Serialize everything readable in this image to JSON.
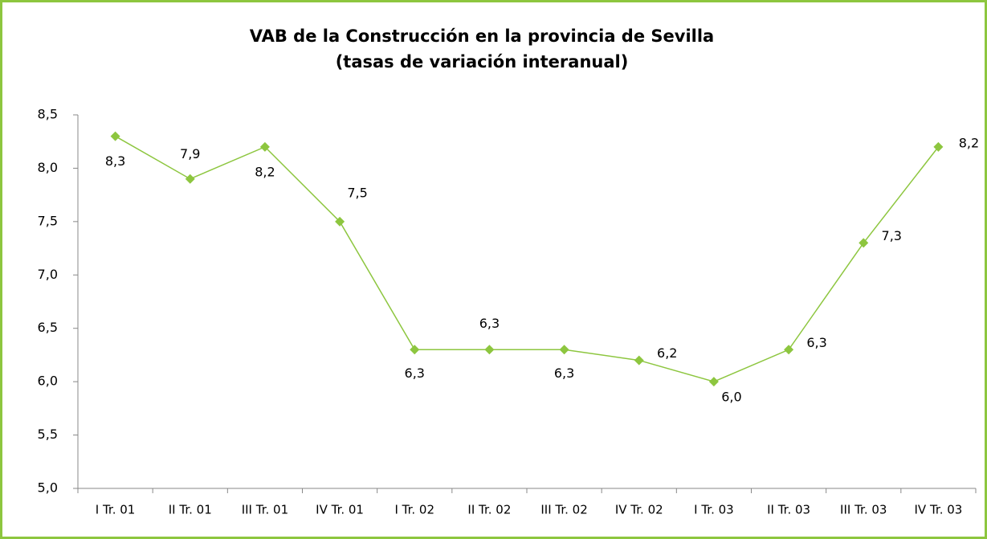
{
  "chart_data": {
    "type": "line",
    "title": [
      "VAB de la Construcción en la provincia de Sevilla",
      "(tasas de variación interanual)"
    ],
    "categories": [
      "I Tr. 01",
      "II Tr. 01",
      "III Tr. 01",
      "IV Tr. 01",
      "I Tr. 02",
      "II Tr. 02",
      "III Tr. 02",
      "IV Tr. 02",
      "I Tr. 03",
      "II Tr. 03",
      "III Tr. 03",
      "IV Tr. 03"
    ],
    "series": [
      {
        "color": "#8dc63f",
        "values": [
          8.3,
          7.9,
          8.2,
          7.5,
          6.3,
          6.3,
          6.3,
          6.2,
          6.0,
          6.3,
          7.3,
          8.2
        ],
        "value_labels": [
          "8,3",
          "7,9",
          "8,2",
          "7,5",
          "6,3",
          "6,3",
          "6,3",
          "6,2",
          "6,0",
          "6,3",
          "7,3",
          "8,2"
        ]
      }
    ],
    "ylim": [
      5.0,
      8.5
    ],
    "yticks": [
      {
        "value": 5.0,
        "label": "5,0"
      },
      {
        "value": 5.5,
        "label": "5,5"
      },
      {
        "value": 6.0,
        "label": "6,0"
      },
      {
        "value": 6.5,
        "label": "6,5"
      },
      {
        "value": 7.0,
        "label": "7,0"
      },
      {
        "value": 7.5,
        "label": "7,5"
      },
      {
        "value": 8.0,
        "label": "8,0"
      },
      {
        "value": 8.5,
        "label": "8,5"
      }
    ],
    "grid": false
  }
}
